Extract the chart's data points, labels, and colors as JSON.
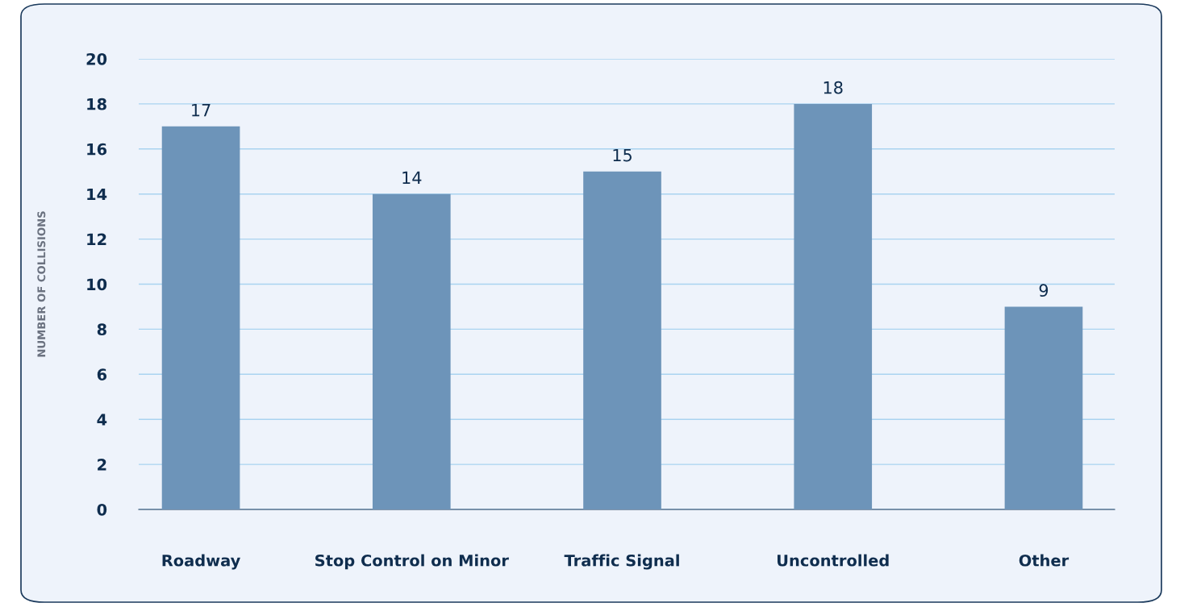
{
  "chart_data": {
    "type": "bar",
    "ylabel": "NUMBER OF COLLISIONS",
    "categories": [
      "Roadway",
      "Stop Control on Minor",
      "Traffic Signal",
      "Uncontrolled",
      "Other"
    ],
    "values": [
      17,
      14,
      15,
      18,
      9
    ],
    "color": "#6d94b9",
    "ylim": [
      0,
      20
    ],
    "yticks": [
      0,
      2,
      4,
      6,
      8,
      10,
      12,
      14,
      16,
      18,
      20
    ],
    "grid": "y",
    "data_labels": true
  }
}
